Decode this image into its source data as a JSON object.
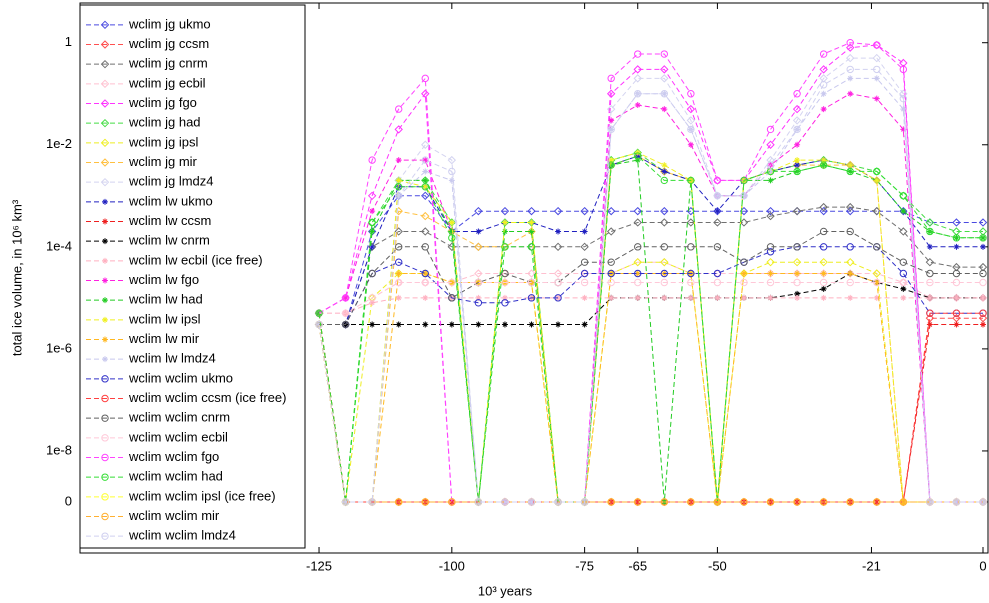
{
  "chart_data": {
    "type": "line",
    "log_scale": true,
    "x_label": "10³ years",
    "y_label": "total ice volume, in 10⁶ km³",
    "xlim": [
      -170,
      0
    ],
    "xticks": [
      -125,
      -100,
      -75,
      -65,
      -50,
      -21,
      0
    ],
    "ylim": [
      1e-10,
      6
    ],
    "yticks": [
      1,
      {
        "value": 0.01,
        "label": "1e-2"
      },
      {
        "value": 0.0001,
        "label": "1e-4"
      },
      {
        "value": 1e-06,
        "label": "1e-6"
      },
      {
        "value": 1e-08,
        "label": "1e-8"
      },
      0
    ],
    "legend": "upper left",
    "x": [
      -125,
      -120,
      -115,
      -110,
      -105,
      -100,
      -95,
      -90,
      -85,
      -80,
      -75,
      -70,
      -65,
      -60,
      -55,
      -50,
      -45,
      -40,
      -35,
      -30,
      -25,
      -20,
      -15,
      -10,
      -5,
      0
    ],
    "series": [
      {
        "name": "wclim jg ukmo",
        "color": "#4a4ae0",
        "marker": "diamond",
        "values": [
          3e-06,
          3e-06,
          0.0002,
          0.001,
          0.001,
          0.0002,
          0.0005,
          0.0005,
          0.0005,
          0.0005,
          0.0005,
          0.0005,
          0.0005,
          0.0005,
          0.0005,
          0.0005,
          0.0005,
          0.0005,
          0.0005,
          0.0005,
          0.0005,
          0.0005,
          0.0005,
          0.0003,
          0.0003,
          0.0003
        ]
      },
      {
        "name": "wclim jg ccsm",
        "color": "#ff5050",
        "marker": "diamond",
        "values": [
          5e-06,
          0,
          0,
          0,
          0,
          0,
          0,
          0,
          0,
          0,
          0,
          0,
          0,
          0,
          0,
          0,
          0,
          0,
          0,
          0,
          0,
          0,
          0,
          4e-06,
          4e-06,
          4e-06
        ]
      },
      {
        "name": "wclim jg cnrm",
        "color": "#707070",
        "marker": "diamond",
        "values": [
          3e-06,
          3e-06,
          0.0001,
          0.0002,
          0.0002,
          0.0001,
          0.0001,
          0.0001,
          0.0001,
          0.0001,
          0.0001,
          0.0002,
          0.0003,
          0.0003,
          0.0003,
          0.0003,
          0.0003,
          0.0004,
          0.0005,
          0.0006,
          0.0006,
          0.0005,
          0.0002,
          5e-05,
          4e-05,
          4e-05
        ]
      },
      {
        "name": "wclim jg ecbil",
        "color": "#ffc0d0",
        "marker": "diamond",
        "values": [
          5e-06,
          5e-06,
          1e-05,
          2e-05,
          2e-05,
          2e-05,
          3e-05,
          3e-05,
          3e-05,
          3e-05,
          3e-05,
          3e-05,
          5e-05,
          5e-05,
          3e-05,
          3e-05,
          3e-05,
          3e-05,
          3e-05,
          3e-05,
          3e-05,
          3e-05,
          2e-05,
          1e-05,
          1e-05,
          1e-05
        ]
      },
      {
        "name": "wclim jg fgo",
        "color": "#ff33ff",
        "marker": "diamond",
        "values": [
          5e-06,
          1e-05,
          0.001,
          0.02,
          0.1,
          0,
          0,
          0,
          0,
          0,
          0,
          0.1,
          0.3,
          0.3,
          0.05,
          0.002,
          0.002,
          0.01,
          0.05,
          0.3,
          0.8,
          0.9,
          0.4,
          0,
          0,
          0
        ]
      },
      {
        "name": "wclim jg had",
        "color": "#44dd44",
        "marker": "diamond",
        "values": [
          5e-06,
          0,
          0.0003,
          0.002,
          0.002,
          0.0003,
          0,
          0.0003,
          0.0003,
          0,
          0,
          0.005,
          0.007,
          0.003,
          0.002,
          0,
          0.002,
          0.003,
          0.004,
          0.005,
          0.004,
          0.003,
          0.001,
          0.0003,
          0.0002,
          0.0002
        ]
      },
      {
        "name": "wclim jg ipsl",
        "color": "#eeee22",
        "marker": "diamond",
        "values": [
          3e-06,
          0,
          1e-05,
          3e-05,
          3e-05,
          2e-05,
          2e-05,
          2e-05,
          2e-05,
          0,
          0,
          3e-05,
          5e-05,
          5e-05,
          3e-05,
          0,
          3e-05,
          5e-05,
          5e-05,
          5e-05,
          5e-05,
          3e-05,
          0,
          0,
          0,
          0
        ]
      },
      {
        "name": "wclim jg mir",
        "color": "#ffc040",
        "marker": "diamond",
        "values": [
          3e-06,
          0,
          0,
          0.0005,
          0.0004,
          0.0002,
          0.0001,
          0.0001,
          0.0002,
          0,
          0,
          0.004,
          0.006,
          0.003,
          0.002,
          0,
          0.002,
          0.003,
          0.004,
          0.004,
          0.004,
          0.002,
          0,
          0,
          0,
          0
        ]
      },
      {
        "name": "wclim jg lmdz4",
        "color": "#d4d4f0",
        "marker": "diamond",
        "values": [
          3e-06,
          0,
          0,
          0.002,
          0.01,
          0.005,
          0,
          0,
          0,
          0,
          0,
          0.05,
          0.2,
          0.2,
          0.03,
          0.001,
          0.001,
          0.005,
          0.03,
          0.2,
          0.5,
          0.5,
          0.1,
          0,
          0,
          0
        ]
      },
      {
        "name": "wclim lw ukmo",
        "color": "#2020c0",
        "marker": "plus",
        "values": [
          3e-06,
          3e-06,
          0.0001,
          0.0015,
          0.0015,
          0.0002,
          0.0002,
          0.0003,
          0.0003,
          0.0002,
          0.0002,
          0.004,
          0.006,
          0.003,
          0.002,
          0.0005,
          0.002,
          0.003,
          0.004,
          0.005,
          0.004,
          0.002,
          0.0005,
          0.0001,
          0.0001,
          0.0001
        ]
      },
      {
        "name": "wclim lw ccsm",
        "color": "#ee2020",
        "marker": "plus",
        "values": [
          3e-06,
          0,
          0,
          0,
          0,
          0,
          0,
          0,
          0,
          0,
          0,
          0,
          0,
          0,
          0,
          0,
          0,
          0,
          0,
          0,
          0,
          0,
          0,
          3e-06,
          3e-06,
          3e-06
        ]
      },
      {
        "name": "wclim lw cnrm",
        "color": "#000000",
        "marker": "plus",
        "values": [
          3e-06,
          3e-06,
          3e-06,
          3e-06,
          3e-06,
          3e-06,
          3e-06,
          3e-06,
          3e-06,
          3e-06,
          3e-06,
          1e-05,
          1e-05,
          1e-05,
          1e-05,
          1e-05,
          1e-05,
          1e-05,
          1.2e-05,
          1.5e-05,
          3e-05,
          2e-05,
          1.5e-05,
          1e-05,
          1e-05,
          1e-05
        ]
      },
      {
        "name": "wclim lw ecbil (ice free)",
        "color": "#ffb0c0",
        "marker": "plus",
        "values": [
          5e-06,
          5e-06,
          8e-06,
          1e-05,
          1e-05,
          1e-05,
          1e-05,
          1e-05,
          1e-05,
          1e-05,
          1e-05,
          1e-05,
          1e-05,
          1e-05,
          1e-05,
          1e-05,
          1e-05,
          1e-05,
          1e-05,
          1e-05,
          1e-05,
          1e-05,
          1e-05,
          1e-05,
          1e-05,
          1e-05
        ]
      },
      {
        "name": "wclim lw fgo",
        "color": "#ff20e0",
        "marker": "plus",
        "values": [
          5e-06,
          1e-05,
          0.0005,
          0.005,
          0.005,
          0.0002,
          0,
          0,
          0,
          0,
          0,
          0.03,
          0.06,
          0.05,
          0.01,
          0.001,
          0.001,
          0.004,
          0.01,
          0.05,
          0.1,
          0.08,
          0.02,
          0,
          0,
          0
        ]
      },
      {
        "name": "wclim lw had",
        "color": "#22cc22",
        "marker": "plus",
        "values": [
          5e-06,
          0,
          0.0002,
          0.002,
          0.002,
          0.0002,
          0,
          0.0002,
          0.0002,
          0,
          0,
          0.004,
          0.005,
          0,
          0.002,
          0,
          0.002,
          0.002,
          0.003,
          0.004,
          0.003,
          0.002,
          0.0005,
          0.0002,
          0.00015,
          0.00015
        ]
      },
      {
        "name": "wclim lw ipsl",
        "color": "#f0f020",
        "marker": "plus",
        "values": [
          3e-06,
          0,
          0,
          0.002,
          0.0015,
          0.0003,
          0,
          0.0003,
          0.0003,
          0,
          0,
          0.005,
          0.007,
          0.004,
          0.002,
          0,
          0.002,
          0.003,
          0.005,
          0.005,
          0.004,
          0.002,
          0,
          0,
          0,
          0
        ]
      },
      {
        "name": "wclim lw mir",
        "color": "#ffb820",
        "marker": "plus",
        "values": [
          3e-06,
          0,
          0,
          3e-05,
          3e-05,
          2e-05,
          2e-05,
          2e-05,
          2e-05,
          0,
          0,
          3e-05,
          3e-05,
          3e-05,
          3e-05,
          0,
          3e-05,
          3e-05,
          3e-05,
          3e-05,
          3e-05,
          2e-05,
          0,
          0,
          0,
          0
        ]
      },
      {
        "name": "wclim lw lmdz4",
        "color": "#c8c8ee",
        "marker": "plus",
        "values": [
          3e-06,
          0,
          0,
          0.001,
          0.003,
          0.002,
          0,
          0,
          0,
          0,
          0,
          0.02,
          0.1,
          0.1,
          0.02,
          0.001,
          0.001,
          0.003,
          0.02,
          0.1,
          0.2,
          0.2,
          0.05,
          0,
          0,
          0
        ]
      },
      {
        "name": "wclim wclim ukmo",
        "color": "#3030c8",
        "marker": "circle",
        "values": [
          3e-06,
          3e-06,
          3e-05,
          5e-05,
          3e-05,
          1e-05,
          8e-06,
          8e-06,
          1e-05,
          1e-05,
          3e-05,
          3e-05,
          3e-05,
          3e-05,
          3e-05,
          3e-05,
          5e-05,
          8e-05,
          0.0001,
          0.0001,
          0.0001,
          0.0001,
          3e-05,
          5e-06,
          5e-06,
          5e-06
        ]
      },
      {
        "name": "wclim wclim ccsm (ice free)",
        "color": "#ff4040",
        "marker": "circle",
        "values": [
          5e-06,
          0,
          0,
          0,
          0,
          0,
          0,
          0,
          0,
          0,
          0,
          0,
          0,
          0,
          0,
          0,
          0,
          0,
          0,
          0,
          0,
          0,
          0,
          5e-06,
          5e-06,
          5e-06
        ]
      },
      {
        "name": "wclim wclim cnrm",
        "color": "#606060",
        "marker": "circle",
        "values": [
          3e-06,
          3e-06,
          3e-05,
          0.0001,
          0.0001,
          1e-05,
          2e-05,
          3e-05,
          2e-05,
          2e-05,
          5e-05,
          5e-05,
          0.0001,
          0.0001,
          0.0001,
          0.0001,
          5e-05,
          0.0001,
          0.0001,
          0.0002,
          0.0002,
          0.0001,
          5e-05,
          3e-05,
          3e-05,
          3e-05
        ]
      },
      {
        "name": "wclim wclim ecbil",
        "color": "#ffc8d8",
        "marker": "circle",
        "values": [
          5e-06,
          5e-06,
          1e-05,
          2e-05,
          2e-05,
          2e-05,
          2e-05,
          2e-05,
          2e-05,
          2e-05,
          2e-05,
          2e-05,
          2e-05,
          2e-05,
          2e-05,
          2e-05,
          2e-05,
          2e-05,
          2e-05,
          2e-05,
          2e-05,
          2e-05,
          2e-05,
          2e-05,
          2e-05,
          2e-05
        ]
      },
      {
        "name": "wclim wclim fgo",
        "color": "#ff44ff",
        "marker": "circle",
        "values": [
          5e-06,
          1e-05,
          0.005,
          0.05,
          0.2,
          0,
          0,
          0,
          0,
          0,
          0,
          0.2,
          0.6,
          0.6,
          0.1,
          0.002,
          0.002,
          0.02,
          0.1,
          0.6,
          1,
          0.9,
          0.3,
          0,
          0,
          0
        ]
      },
      {
        "name": "wclim wclim had",
        "color": "#33dd33",
        "marker": "circle",
        "values": [
          5e-06,
          0,
          0.0003,
          0.0015,
          0.0015,
          0.00015,
          0,
          0.0001,
          0.0001,
          0,
          0,
          0.004,
          0.006,
          0.002,
          0.002,
          0,
          0.002,
          0.003,
          0.003,
          0.004,
          0.003,
          0.003,
          0.001,
          0.0002,
          0.00015,
          0.00015
        ]
      },
      {
        "name": "wclim wclim ipsl (ice free)",
        "color": "#ffff30",
        "marker": "circle",
        "values": [
          3e-06,
          0,
          0,
          0,
          0,
          0,
          0,
          0,
          0,
          0,
          0,
          0,
          0,
          0,
          0,
          0,
          0,
          0,
          0,
          0,
          0,
          0,
          0,
          0,
          0,
          0
        ]
      },
      {
        "name": "wclim wclim mir",
        "color": "#ffb030",
        "marker": "circle",
        "values": [
          3e-06,
          0,
          0,
          0,
          0,
          0,
          0,
          0,
          0,
          0,
          0,
          0,
          0,
          0,
          0,
          0,
          0,
          0,
          0,
          0,
          0,
          0,
          0,
          0,
          0,
          0
        ]
      },
      {
        "name": "wclim wclim lmdz4",
        "color": "#d0d0f0",
        "marker": "circle",
        "values": [
          3e-06,
          0,
          0,
          0.001,
          0.005,
          0.003,
          0,
          0,
          0,
          0,
          0,
          0.02,
          0.1,
          0.1,
          0.02,
          0.001,
          0.001,
          0.004,
          0.02,
          0.15,
          0.3,
          0.3,
          0.08,
          0,
          0,
          0
        ]
      }
    ]
  }
}
